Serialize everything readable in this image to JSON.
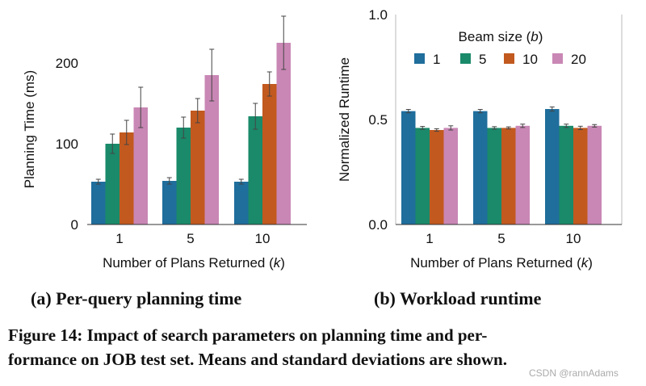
{
  "chart_data": [
    {
      "type": "bar",
      "categories": [
        "1",
        "5",
        "10"
      ],
      "series": [
        {
          "name": "1",
          "values": [
            53,
            54,
            53
          ],
          "errors": [
            3,
            4,
            3
          ]
        },
        {
          "name": "5",
          "values": [
            100,
            120,
            134
          ],
          "errors": [
            12,
            13,
            16
          ]
        },
        {
          "name": "10",
          "values": [
            114,
            141,
            174
          ],
          "errors": [
            15,
            15,
            15
          ]
        },
        {
          "name": "20",
          "values": [
            145,
            185,
            225
          ],
          "errors": [
            25,
            32,
            33
          ]
        }
      ],
      "xlabel_text": "Number of Plans Returned (",
      "xlabel_var": "k",
      "xlabel_close": ")",
      "ylabel": "Planning Time (ms)",
      "yticks": [
        0,
        100,
        200
      ],
      "ylim": [
        0,
        250
      ],
      "caption": "(a) Per-query planning time"
    },
    {
      "type": "bar",
      "categories": [
        "1",
        "5",
        "10"
      ],
      "series": [
        {
          "name": "1",
          "values": [
            0.54,
            0.54,
            0.55
          ],
          "errors": [
            0.008,
            0.008,
            0.01
          ]
        },
        {
          "name": "5",
          "values": [
            0.46,
            0.46,
            0.47
          ],
          "errors": [
            0.007,
            0.006,
            0.008
          ]
        },
        {
          "name": "10",
          "values": [
            0.45,
            0.46,
            0.46
          ],
          "errors": [
            0.006,
            0.005,
            0.008
          ]
        },
        {
          "name": "20",
          "values": [
            0.46,
            0.47,
            0.47
          ],
          "errors": [
            0.01,
            0.008,
            0.006
          ]
        }
      ],
      "xlabel_text": "Number of Plans Returned (",
      "xlabel_var": "k",
      "xlabel_close": ")",
      "ylabel": "Normalized Runtime",
      "yticks": [
        0.0,
        0.5,
        1.0
      ],
      "ytick_labels": [
        "0.0",
        "0.5",
        "1.0"
      ],
      "ylim": [
        0,
        1.0
      ],
      "legend_title_text": "Beam size (",
      "legend_title_var": "b",
      "legend_title_close": ")",
      "legend_placement": "top-right",
      "caption": "(b) Workload runtime"
    }
  ],
  "colors": [
    "#1f6e9c",
    "#1a8a6a",
    "#c2591f",
    "#c987b5"
  ],
  "figure_caption_line1": "Figure 14: Impact of search parameters on planning time and per-",
  "figure_caption_line2": "formance on JOB test set. Means and standard deviations are shown.",
  "watermark": "CSDN @rannAdams"
}
